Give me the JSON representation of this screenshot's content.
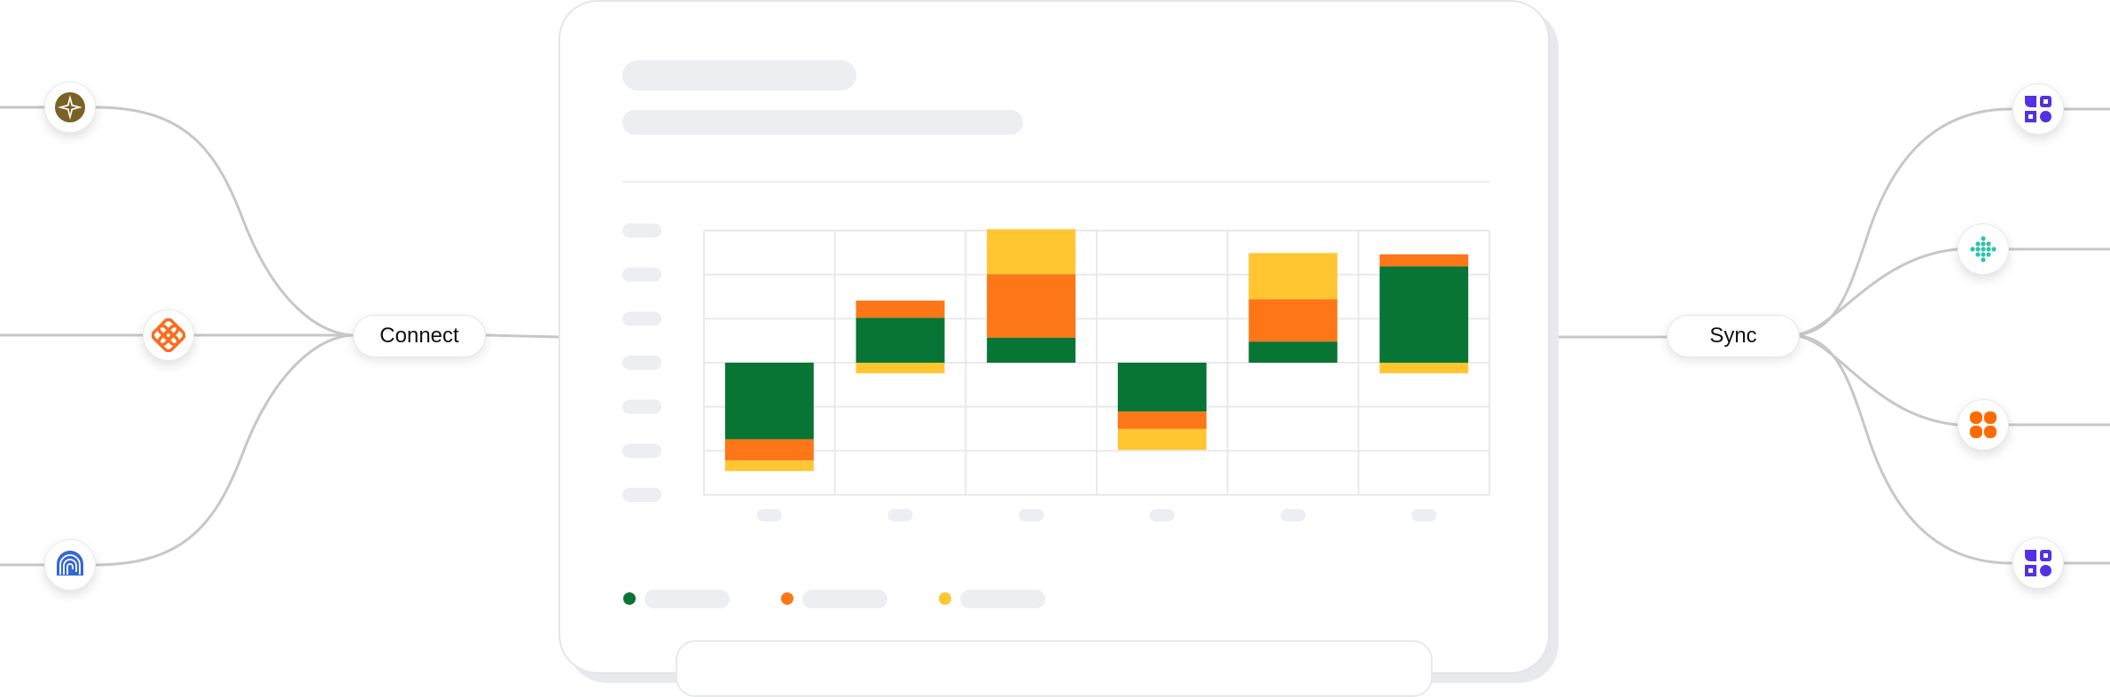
{
  "labels": {
    "connect": "Connect",
    "sync": "Sync"
  },
  "colors": {
    "green": "#087534",
    "orange": "#fd7618",
    "yellow": "#ffc632",
    "wire": "#c7c7c9",
    "skeleton": "#eceef2"
  },
  "left_nodes": [
    {
      "icon": "compass-star-icon",
      "color": "#7a6126"
    },
    {
      "icon": "orange-knot-icon",
      "color": "#fc6c1e"
    },
    {
      "icon": "blue-spiral-icon",
      "color": "#3467d6"
    }
  ],
  "right_nodes": [
    {
      "icon": "purple-blocks-icon",
      "color": "#5332e3"
    },
    {
      "icon": "teal-dots-icon",
      "color": "#33c1ab"
    },
    {
      "icon": "orange-clover-icon",
      "color": "#ff6a00"
    },
    {
      "icon": "purple-blocks-icon",
      "color": "#5332e3"
    }
  ],
  "chart_data": {
    "type": "bar",
    "stacked": true,
    "diverging": true,
    "categories": [
      "",
      "",
      "",
      "",
      "",
      ""
    ],
    "series": [
      {
        "color": "#087534",
        "values": [
          -5.8,
          3.4,
          1.9,
          -3.7,
          1.6,
          7.3
        ]
      },
      {
        "color": "#fd7618",
        "values": [
          -1.6,
          1.3,
          4.8,
          -1.3,
          3.2,
          0.9
        ]
      },
      {
        "color": "#ffc632",
        "values": [
          -0.8,
          -0.8,
          3.4,
          -1.6,
          3.5,
          -0.8
        ]
      }
    ],
    "ylim": [
      -10,
      10
    ],
    "grid": true,
    "legend": "bottom-left"
  }
}
